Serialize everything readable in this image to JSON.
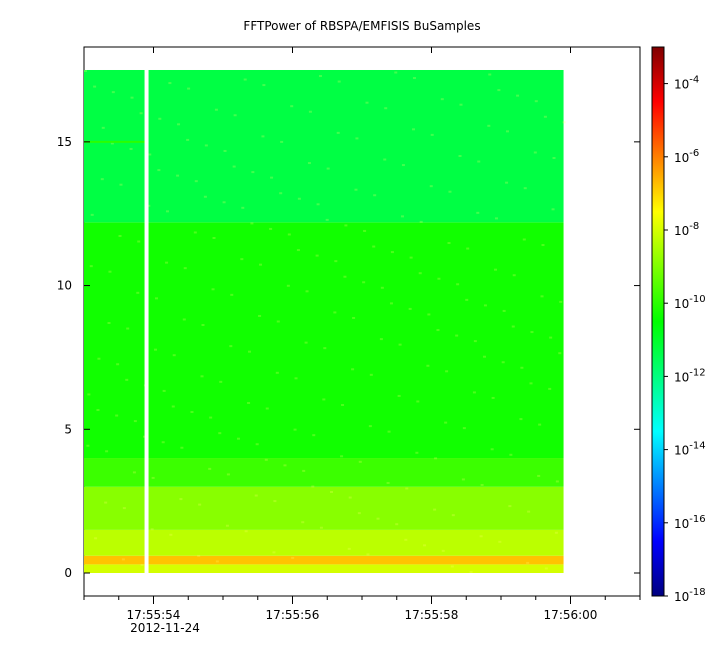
{
  "chart_data": {
    "type": "heatmap",
    "title": "FFTPower of RBSPA/EMFISIS  BuSamples",
    "xlabel": "",
    "ylabel": "",
    "x_axis": {
      "type": "time",
      "start": "17:55:53.0",
      "end": "17:56:01.0",
      "major_ticks": [
        "17:55:54",
        "17:55:56",
        "17:55:58",
        "17:56:00"
      ],
      "date_label": "2012-11-24",
      "minor_tick_interval_s": 0.5
    },
    "y_axis": {
      "ylim": [
        -0.8,
        18.3
      ],
      "ticks": [
        0,
        5,
        10,
        15
      ],
      "tick_labels": [
        "0",
        "5",
        "10",
        "15"
      ]
    },
    "colorbar": {
      "scale": "log",
      "range": [
        1e-18,
        0.001
      ],
      "tick_exponents": [
        -4,
        -6,
        -8,
        -10,
        -12,
        -14,
        -16,
        -18
      ],
      "tick_base": "10",
      "colors": [
        "#00007f",
        "#0000ff",
        "#007fff",
        "#00ffff",
        "#00ff7f",
        "#00ff00",
        "#7fff00",
        "#ffff00",
        "#ff7f00",
        "#ff0000",
        "#7f0000"
      ]
    },
    "data_extent": {
      "time_start": "17:55:53.0",
      "time_end": "17:55:59.9",
      "freq_min": 0,
      "freq_max": 17.5
    },
    "gap": {
      "time": "17:55:53.9"
    },
    "spectrum_bands": [
      {
        "from": 0.0,
        "to": 0.3,
        "log10_power": -8.0
      },
      {
        "from": 0.3,
        "to": 0.6,
        "log10_power": -6.8
      },
      {
        "from": 0.6,
        "to": 1.5,
        "log10_power": -8.3
      },
      {
        "from": 1.5,
        "to": 3.0,
        "log10_power": -8.9
      },
      {
        "from": 3.0,
        "to": 4.0,
        "log10_power": -9.8
      },
      {
        "from": 4.0,
        "to": 12.2,
        "log10_power": -10.3
      },
      {
        "from": 12.2,
        "to": 17.5,
        "log10_power": -11.3
      }
    ],
    "features": [
      {
        "freq": 15.0,
        "time_start": "17:55:53.0",
        "time_end": "17:55:53.9",
        "log10_power": -10.0
      }
    ]
  }
}
